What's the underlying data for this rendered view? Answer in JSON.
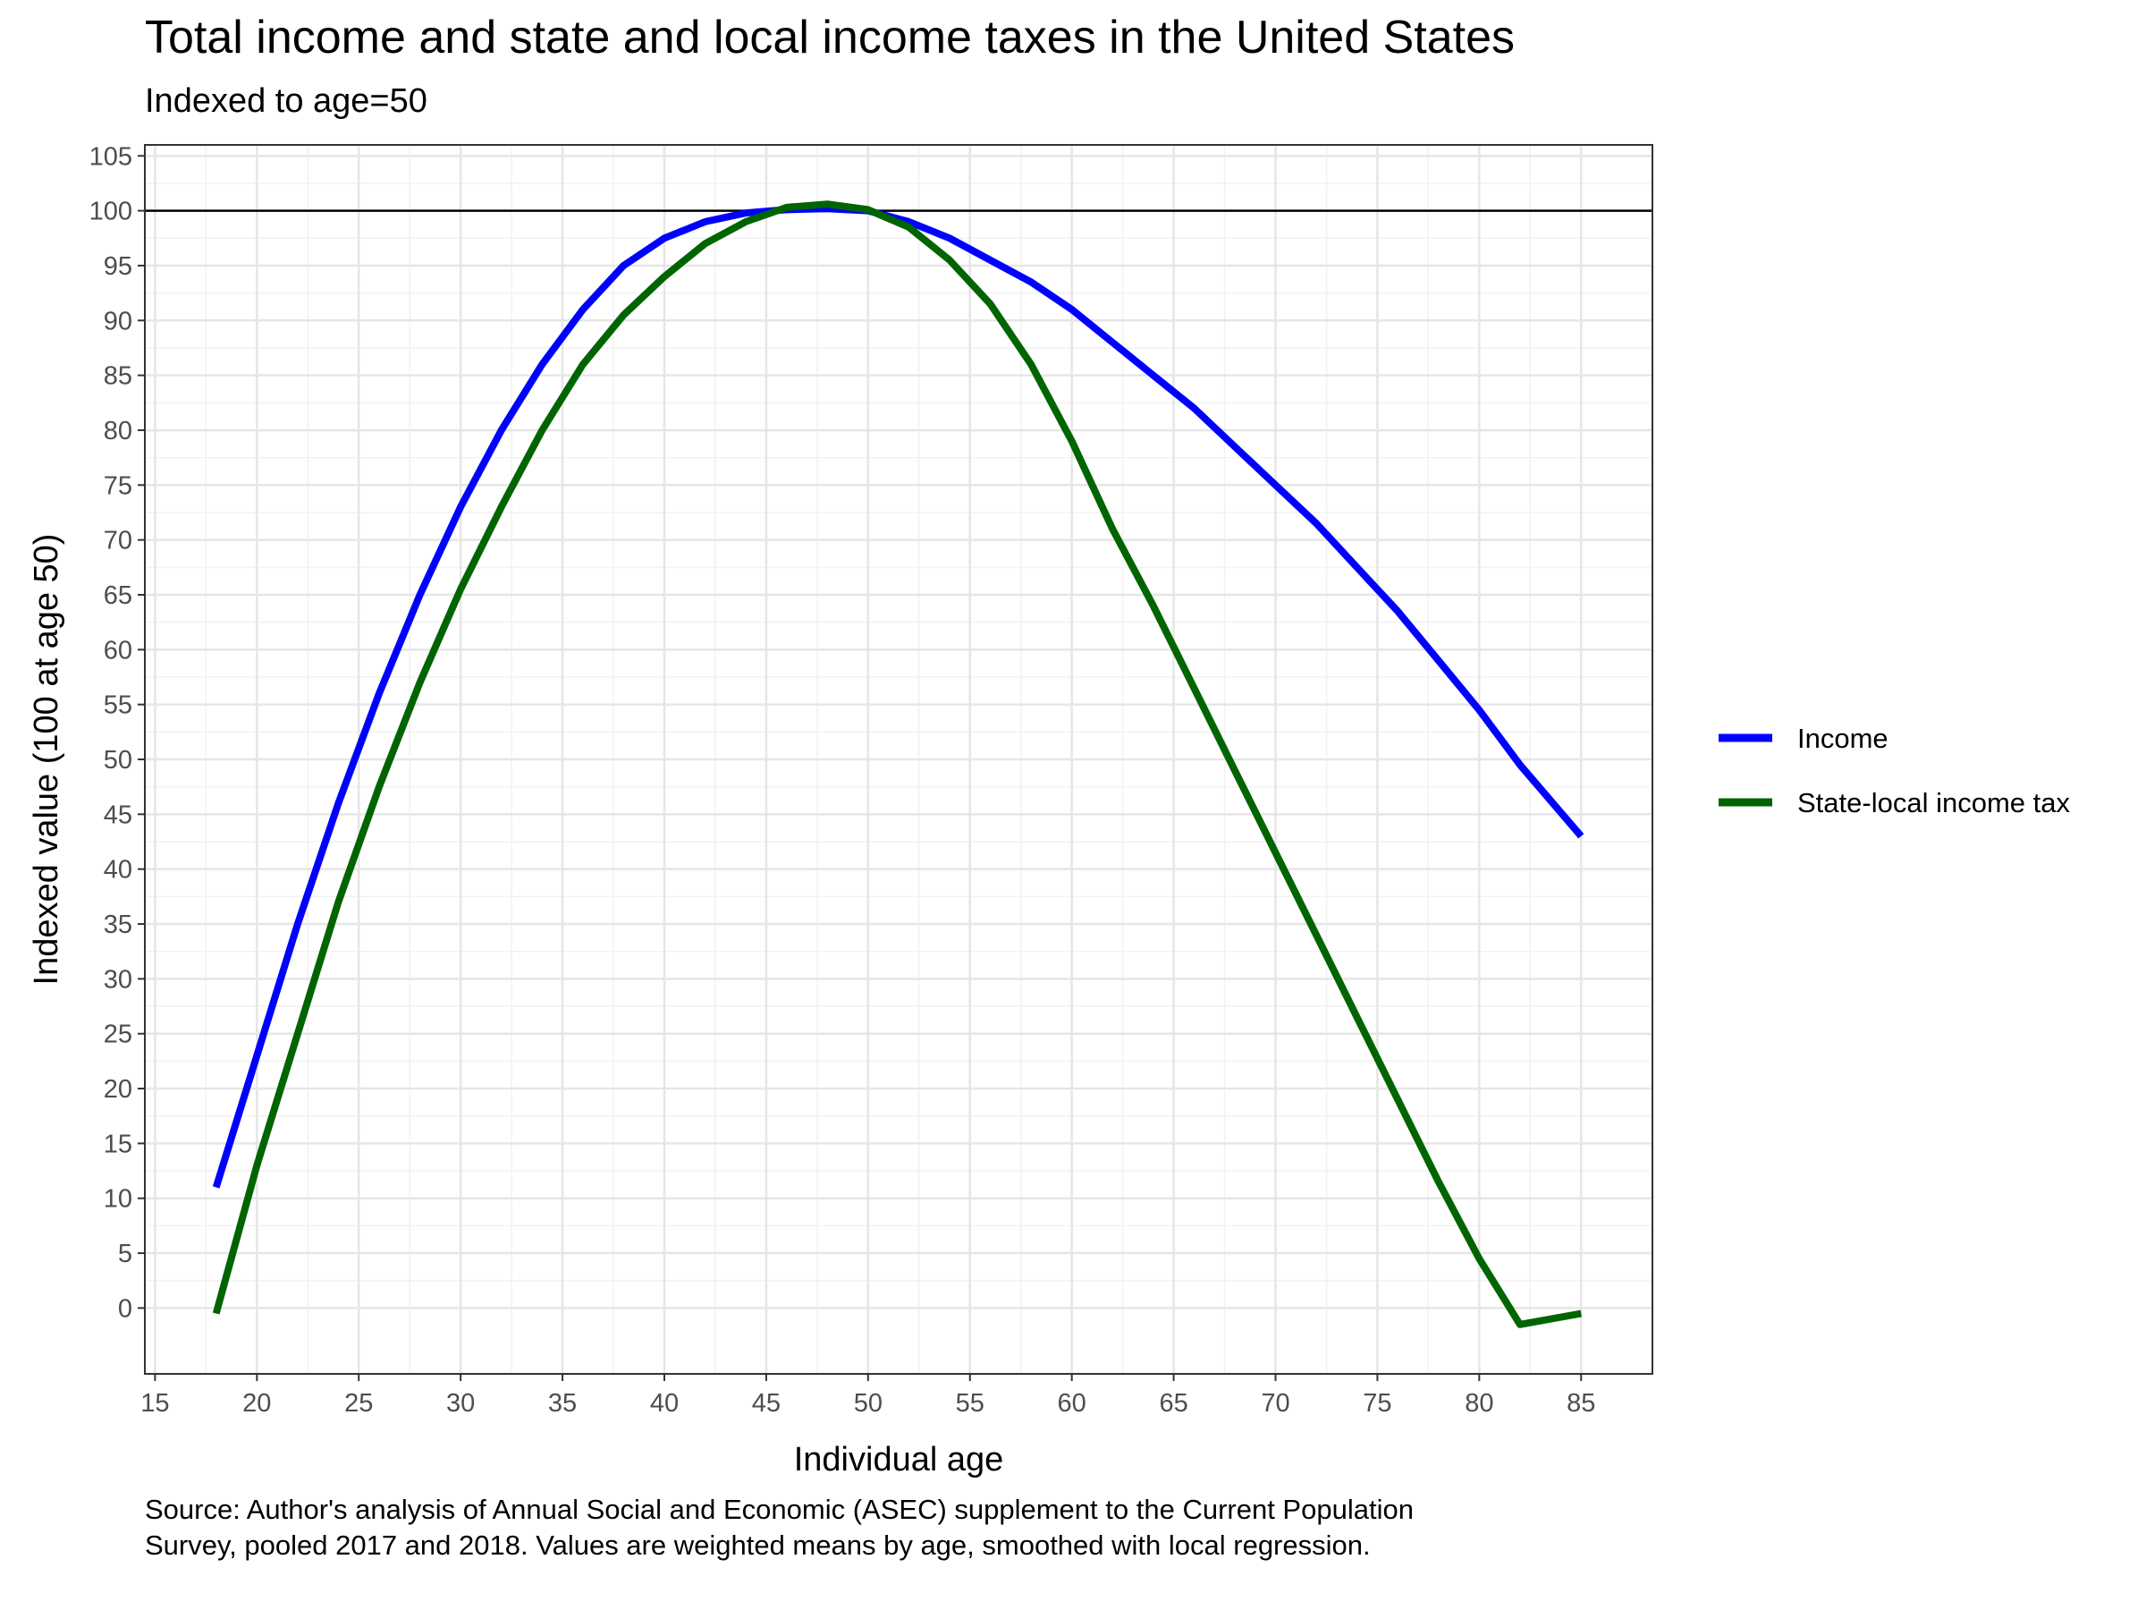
{
  "chart_data": {
    "type": "line",
    "title": "Total income and state and local income taxes in the United States",
    "subtitle": "Indexed to age=50",
    "xlabel": "Individual age",
    "ylabel": "Indexed value (100 at age 50)",
    "caption": "Source: Author's analysis of Annual Social and Economic (ASEC) supplement to the Current Population Survey, pooled 2017 and 2018. Values are weighted means by age, smoothed with local regression.",
    "xlim": [
      14.5,
      88.5
    ],
    "ylim": [
      -6,
      106
    ],
    "x_ticks": [
      15,
      20,
      25,
      30,
      35,
      40,
      45,
      50,
      55,
      60,
      65,
      70,
      75,
      80,
      85
    ],
    "y_ticks": [
      0,
      5,
      10,
      15,
      20,
      25,
      30,
      35,
      40,
      45,
      50,
      55,
      60,
      65,
      70,
      75,
      80,
      85,
      90,
      95,
      100,
      105
    ],
    "reference_line": {
      "y": 100
    },
    "grid": true,
    "legend_position": "right",
    "series": [
      {
        "name": "Income",
        "color": "#0000ff",
        "x": [
          18,
          20,
          22,
          24,
          26,
          28,
          30,
          32,
          34,
          36,
          38,
          40,
          42,
          44,
          46,
          48,
          50,
          52,
          54,
          56,
          58,
          60,
          62,
          64,
          66,
          68,
          70,
          72,
          74,
          76,
          78,
          80,
          82,
          85
        ],
        "y": [
          11,
          23,
          35,
          46,
          56,
          65,
          73,
          80,
          86,
          91,
          95,
          97.5,
          99,
          99.8,
          100.1,
          100.2,
          100,
          99,
          97.5,
          95.5,
          93.5,
          91,
          88,
          85,
          82,
          78.5,
          75,
          71.5,
          67.5,
          63.5,
          59,
          54.5,
          49.5,
          43
        ]
      },
      {
        "name": "State-local income tax",
        "color": "#006400",
        "x": [
          18,
          20,
          22,
          24,
          26,
          28,
          30,
          32,
          34,
          36,
          38,
          40,
          42,
          44,
          46,
          48,
          50,
          52,
          54,
          56,
          58,
          60,
          62,
          64,
          66,
          68,
          70,
          72,
          74,
          76,
          78,
          80,
          82,
          85
        ],
        "y": [
          -0.5,
          13,
          25,
          37,
          47.5,
          57,
          65.5,
          73,
          80,
          86,
          90.5,
          94,
          97,
          99,
          100.3,
          100.6,
          100.1,
          98.5,
          95.5,
          91.5,
          86,
          79,
          71,
          64,
          56.5,
          49,
          41.5,
          34,
          26.5,
          19,
          11.5,
          4.5,
          -1.5,
          -0.5
        ]
      }
    ]
  }
}
